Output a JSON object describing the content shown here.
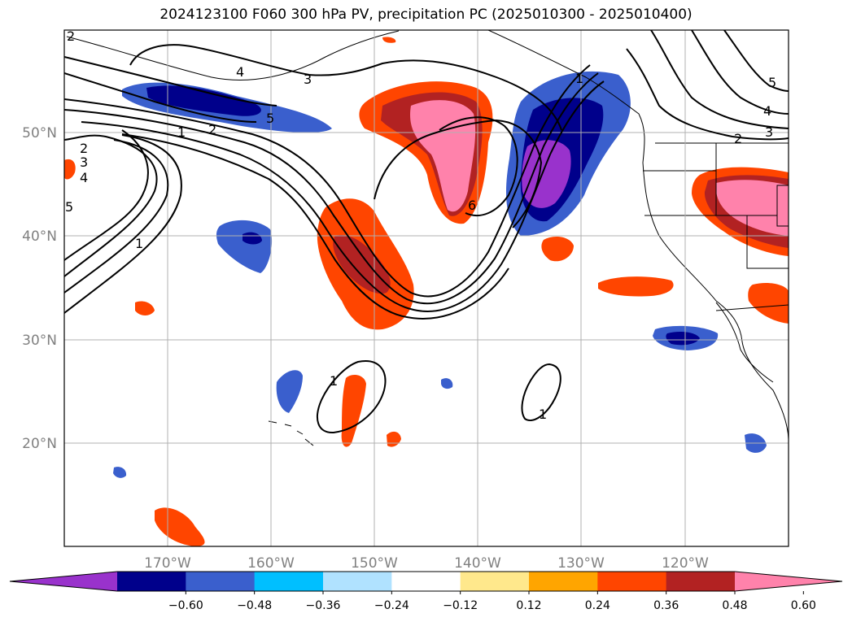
{
  "title": "2024123100 F060 300 hPa PV, precipitation PC (2025010300 - 2025010400)",
  "lon_ticks": [
    {
      "label": "170°W"
    },
    {
      "label": "160°W"
    },
    {
      "label": "150°W"
    },
    {
      "label": "140°W"
    },
    {
      "label": "130°W"
    },
    {
      "label": "120°W"
    }
  ],
  "lat_ticks": [
    {
      "label": "50°N"
    },
    {
      "label": "40°N"
    },
    {
      "label": "30°N"
    },
    {
      "label": "20°N"
    }
  ],
  "colorbar": {
    "colors": [
      "#9932cc",
      "#00008b",
      "#3a5fcd",
      "#00bfff",
      "#b0e2ff",
      "#ffffff",
      "#ffe88c",
      "#ffa500",
      "#ff4500",
      "#b22222",
      "#ff82ab"
    ],
    "tick_labels": [
      "−0.60",
      "−0.48",
      "−0.36",
      "−0.24",
      "−0.12",
      "0.12",
      "0.24",
      "0.36",
      "0.48",
      "0.60"
    ]
  },
  "contour_labels": [
    {
      "text": "2"
    },
    {
      "text": "4"
    },
    {
      "text": "3"
    },
    {
      "text": "5"
    },
    {
      "text": "1"
    },
    {
      "text": "2"
    },
    {
      "text": "2"
    },
    {
      "text": "3"
    },
    {
      "text": "4"
    },
    {
      "text": "5"
    },
    {
      "text": "1"
    },
    {
      "text": "6"
    },
    {
      "text": "1"
    },
    {
      "text": "1"
    },
    {
      "text": "5"
    },
    {
      "text": "4"
    },
    {
      "text": "3"
    },
    {
      "text": "2"
    },
    {
      "text": "1"
    }
  ]
}
